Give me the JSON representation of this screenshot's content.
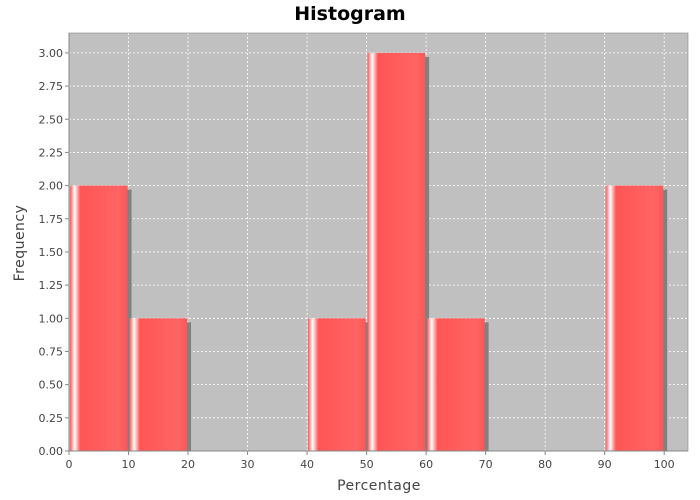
{
  "chart_data": {
    "type": "bar",
    "title": "Histogram",
    "xlabel": "Percentage",
    "ylabel": "Frequency",
    "xlim": [
      0,
      104
    ],
    "ylim": [
      0,
      3.15
    ],
    "xticks": [
      "0",
      "10",
      "20",
      "30",
      "40",
      "50",
      "60",
      "70",
      "80",
      "90",
      "100"
    ],
    "yticks": [
      "0.00",
      "0.25",
      "0.50",
      "0.75",
      "1.00",
      "1.25",
      "1.50",
      "1.75",
      "2.00",
      "2.25",
      "2.50",
      "2.75",
      "3.00"
    ],
    "bins": [
      {
        "start": 0,
        "end": 10,
        "value": 2
      },
      {
        "start": 10,
        "end": 20,
        "value": 1
      },
      {
        "start": 40,
        "end": 50,
        "value": 1
      },
      {
        "start": 50,
        "end": 60,
        "value": 3
      },
      {
        "start": 60,
        "end": 70,
        "value": 1
      },
      {
        "start": 90,
        "end": 100,
        "value": 2
      }
    ],
    "grid": true,
    "colors": {
      "bar": "#ff5555",
      "plot_background": "#c0c0c0",
      "grid": "#ffffff",
      "shadow": "#808080"
    }
  }
}
